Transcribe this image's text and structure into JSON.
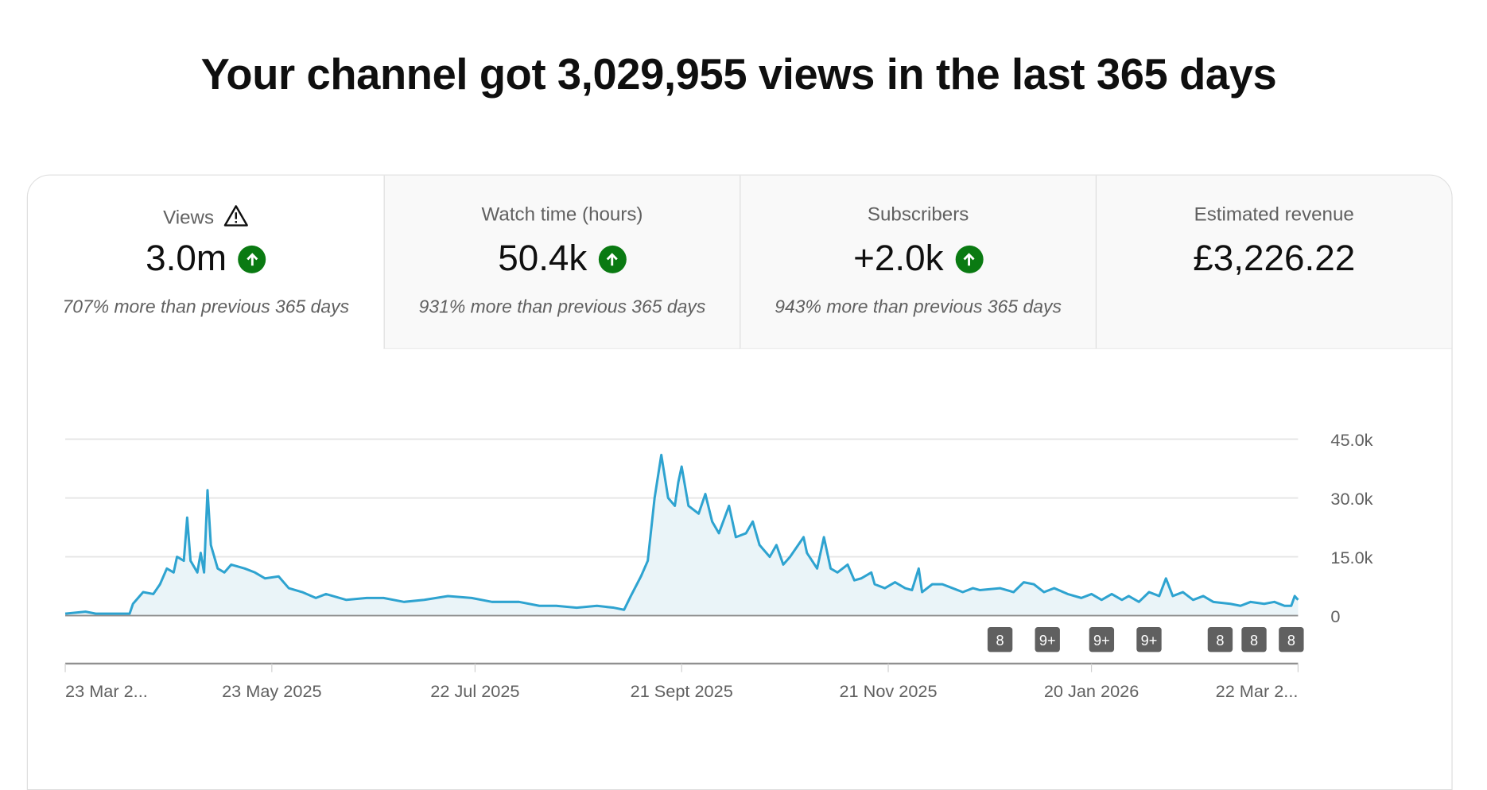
{
  "header": {
    "title": "Your channel got 3,029,955 views in the last 365 days"
  },
  "tabs": [
    {
      "label": "Views",
      "value": "3.0m",
      "trend": "up",
      "warning_icon": true,
      "comparison": "707% more than previous 365 days",
      "active": true
    },
    {
      "label": "Watch time (hours)",
      "value": "50.4k",
      "trend": "up",
      "comparison": "931% more than previous 365 days"
    },
    {
      "label": "Subscribers",
      "value": "+2.0k",
      "trend": "up",
      "comparison": "943% more than previous 365 days"
    },
    {
      "label": "Estimated revenue",
      "value": "£3,226.22",
      "comparison": ""
    }
  ],
  "colors": {
    "line": "#2ea3d0",
    "area": "#eaf4f8",
    "trend_up": "#0a7a12",
    "badge": "#606060"
  },
  "chart_data": {
    "type": "area",
    "ylim": [
      0,
      45000
    ],
    "yticks": [
      {
        "value": 0,
        "label": "0"
      },
      {
        "value": 15000,
        "label": "15.0k"
      },
      {
        "value": 30000,
        "label": "30.0k"
      },
      {
        "value": 45000,
        "label": "45.0k"
      }
    ],
    "y_axis_position": "right",
    "grid": true,
    "xlim": [
      "2025-03-23",
      "2026-03-22"
    ],
    "xticks": [
      {
        "date": "2025-03-23",
        "label": "23 Mar 2..."
      },
      {
        "date": "2025-05-23",
        "label": "23 May 2025"
      },
      {
        "date": "2025-07-22",
        "label": "22 Jul 2025"
      },
      {
        "date": "2025-09-21",
        "label": "21 Sept 2025"
      },
      {
        "date": "2025-11-21",
        "label": "21 Nov 2025"
      },
      {
        "date": "2026-01-20",
        "label": "20 Jan 2026"
      },
      {
        "date": "2026-03-22",
        "label": "22 Mar 2..."
      }
    ],
    "series": [
      {
        "points": [
          [
            "2025-03-23",
            500
          ],
          [
            "2025-03-29",
            1000
          ],
          [
            "2025-04-01",
            500
          ],
          [
            "2025-04-11",
            500
          ],
          [
            "2025-04-12",
            3000
          ],
          [
            "2025-04-15",
            6000
          ],
          [
            "2025-04-18",
            5500
          ],
          [
            "2025-04-20",
            8000
          ],
          [
            "2025-04-22",
            12000
          ],
          [
            "2025-04-24",
            11000
          ],
          [
            "2025-04-25",
            15000
          ],
          [
            "2025-04-27",
            14000
          ],
          [
            "2025-04-28",
            25000
          ],
          [
            "2025-04-29",
            14000
          ],
          [
            "2025-05-01",
            11000
          ],
          [
            "2025-05-02",
            16000
          ],
          [
            "2025-05-03",
            11000
          ],
          [
            "2025-05-04",
            32000
          ],
          [
            "2025-05-05",
            18000
          ],
          [
            "2025-05-07",
            12000
          ],
          [
            "2025-05-09",
            11000
          ],
          [
            "2025-05-11",
            13000
          ],
          [
            "2025-05-15",
            12000
          ],
          [
            "2025-05-18",
            11000
          ],
          [
            "2025-05-21",
            9500
          ],
          [
            "2025-05-25",
            10000
          ],
          [
            "2025-05-28",
            7000
          ],
          [
            "2025-06-01",
            6000
          ],
          [
            "2025-06-05",
            4500
          ],
          [
            "2025-06-08",
            5500
          ],
          [
            "2025-06-14",
            4000
          ],
          [
            "2025-06-20",
            4500
          ],
          [
            "2025-06-25",
            4500
          ],
          [
            "2025-07-01",
            3500
          ],
          [
            "2025-07-07",
            4000
          ],
          [
            "2025-07-14",
            5000
          ],
          [
            "2025-07-21",
            4500
          ],
          [
            "2025-07-27",
            3500
          ],
          [
            "2025-08-04",
            3500
          ],
          [
            "2025-08-10",
            2500
          ],
          [
            "2025-08-15",
            2500
          ],
          [
            "2025-08-21",
            2000
          ],
          [
            "2025-08-27",
            2500
          ],
          [
            "2025-09-01",
            2000
          ],
          [
            "2025-09-04",
            1500
          ],
          [
            "2025-09-06",
            5000
          ],
          [
            "2025-09-09",
            10000
          ],
          [
            "2025-09-11",
            14000
          ],
          [
            "2025-09-13",
            30000
          ],
          [
            "2025-09-15",
            41000
          ],
          [
            "2025-09-17",
            30000
          ],
          [
            "2025-09-19",
            28000
          ],
          [
            "2025-09-20",
            34000
          ],
          [
            "2025-09-21",
            38000
          ],
          [
            "2025-09-23",
            28000
          ],
          [
            "2025-09-26",
            26000
          ],
          [
            "2025-09-28",
            31000
          ],
          [
            "2025-09-30",
            24000
          ],
          [
            "2025-10-02",
            21000
          ],
          [
            "2025-10-05",
            28000
          ],
          [
            "2025-10-07",
            20000
          ],
          [
            "2025-10-10",
            21000
          ],
          [
            "2025-10-12",
            24000
          ],
          [
            "2025-10-14",
            18000
          ],
          [
            "2025-10-17",
            15000
          ],
          [
            "2025-10-19",
            18000
          ],
          [
            "2025-10-21",
            13000
          ],
          [
            "2025-10-23",
            15000
          ],
          [
            "2025-10-27",
            20000
          ],
          [
            "2025-10-28",
            16000
          ],
          [
            "2025-10-31",
            12000
          ],
          [
            "2025-11-02",
            20000
          ],
          [
            "2025-11-04",
            12000
          ],
          [
            "2025-11-06",
            11000
          ],
          [
            "2025-11-09",
            13000
          ],
          [
            "2025-11-11",
            9000
          ],
          [
            "2025-11-13",
            9500
          ],
          [
            "2025-11-16",
            11000
          ],
          [
            "2025-11-17",
            8000
          ],
          [
            "2025-11-20",
            7000
          ],
          [
            "2025-11-23",
            8500
          ],
          [
            "2025-11-26",
            7000
          ],
          [
            "2025-11-28",
            6500
          ],
          [
            "2025-11-30",
            12000
          ],
          [
            "2025-12-01",
            6000
          ],
          [
            "2025-12-04",
            8000
          ],
          [
            "2025-12-07",
            8000
          ],
          [
            "2025-12-10",
            7000
          ],
          [
            "2025-12-13",
            6000
          ],
          [
            "2025-12-16",
            7000
          ],
          [
            "2025-12-18",
            6500
          ],
          [
            "2025-12-24",
            7000
          ],
          [
            "2025-12-28",
            6000
          ],
          [
            "2025-12-31",
            8500
          ],
          [
            "2026-01-03",
            8000
          ],
          [
            "2026-01-06",
            6000
          ],
          [
            "2026-01-09",
            7000
          ],
          [
            "2026-01-13",
            5500
          ],
          [
            "2026-01-17",
            4500
          ],
          [
            "2026-01-20",
            5500
          ],
          [
            "2026-01-23",
            4000
          ],
          [
            "2026-01-26",
            5500
          ],
          [
            "2026-01-29",
            4000
          ],
          [
            "2026-01-31",
            5000
          ],
          [
            "2026-02-03",
            3500
          ],
          [
            "2026-02-06",
            6000
          ],
          [
            "2026-02-09",
            5000
          ],
          [
            "2026-02-11",
            9500
          ],
          [
            "2026-02-13",
            5000
          ],
          [
            "2026-02-16",
            6000
          ],
          [
            "2026-02-19",
            4000
          ],
          [
            "2026-02-22",
            5000
          ],
          [
            "2026-02-25",
            3500
          ],
          [
            "2026-03-02",
            3000
          ],
          [
            "2026-03-05",
            2500
          ],
          [
            "2026-03-08",
            3500
          ],
          [
            "2026-03-12",
            3000
          ],
          [
            "2026-03-15",
            3500
          ],
          [
            "2026-03-18",
            2500
          ],
          [
            "2026-03-20",
            2500
          ],
          [
            "2026-03-21",
            5000
          ],
          [
            "2026-03-22",
            4000
          ]
        ]
      }
    ],
    "annotations": [
      {
        "date": "2025-12-24",
        "label": "8"
      },
      {
        "date": "2026-01-07",
        "label": "9+"
      },
      {
        "date": "2026-01-23",
        "label": "9+"
      },
      {
        "date": "2026-02-06",
        "label": "9+"
      },
      {
        "date": "2026-02-27",
        "label": "8"
      },
      {
        "date": "2026-03-09",
        "label": "8"
      },
      {
        "date": "2026-03-20",
        "label": "8"
      }
    ]
  }
}
